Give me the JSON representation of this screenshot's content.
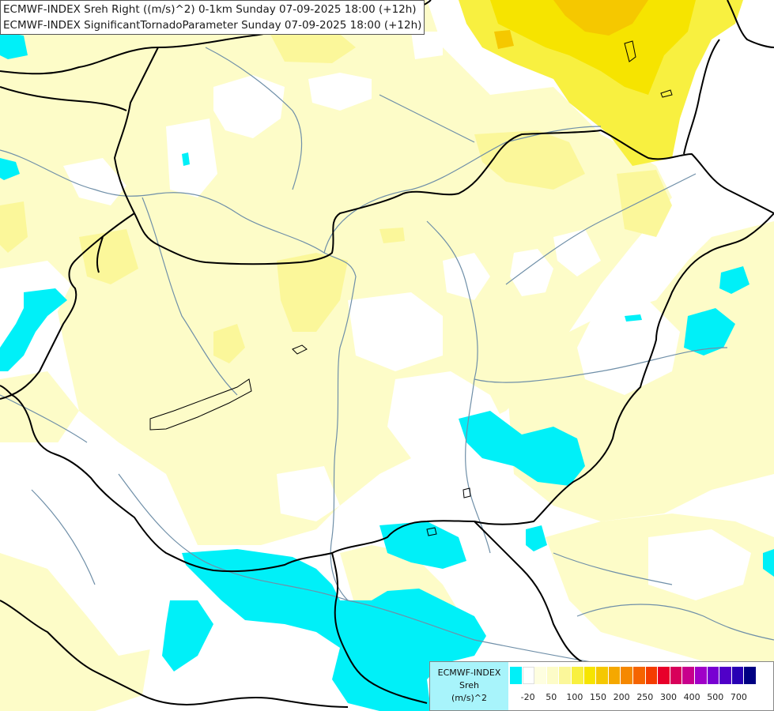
{
  "header": {
    "title_line1": "ECMWF-INDEX Sreh Right ((m/s)^2) 0-1km Sunday 07-09-2025 18:00 (+12h)",
    "title_line2": "ECMWF-INDEX SignificantTornadoParameter Sunday 07-09-2025 18:00 (+12h)"
  },
  "map": {
    "field_colors": {
      "cyan_negative": "#00f0f8",
      "white_zero": "#ffffff",
      "pale_yellow": "#fdfcc8",
      "light_yellow": "#fbf79a",
      "yellow": "#f8f040",
      "bright_yellow": "#f6e400",
      "orange_yellow": "#f5c800"
    },
    "border_color": "#000000",
    "river_color": "#6f8fa8"
  },
  "legend": {
    "line1": "ECMWF-INDEX",
    "line2": "Sreh",
    "line3": "(m/s)^2",
    "colors": [
      "#00f0f8",
      "#ffffff",
      "#fefee0",
      "#fdfcc8",
      "#fbf79a",
      "#f8f040",
      "#f6e400",
      "#f5c800",
      "#f5a800",
      "#f58800",
      "#f56400",
      "#f43c00",
      "#e8002a",
      "#d8005a",
      "#c8008c",
      "#a000c8",
      "#7800d2",
      "#5000c8",
      "#2800b4",
      "#000082"
    ],
    "ticks": [
      "-20",
      "50",
      "100",
      "150",
      "200",
      "250",
      "300",
      "400",
      "500",
      "700"
    ]
  }
}
